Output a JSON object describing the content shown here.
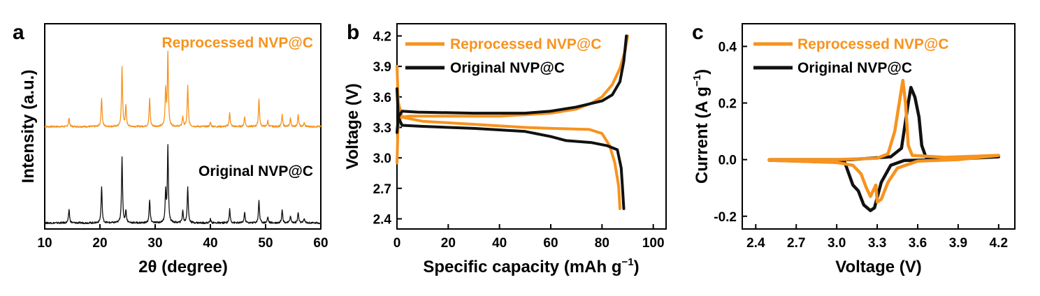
{
  "colors": {
    "reprocessed": "#F7931E",
    "original": "#111111"
  },
  "chart_data": [
    {
      "panel": "a",
      "type": "line",
      "xlabel": "2θ (degree)",
      "ylabel": "Intensity (a.u.)",
      "xlim": [
        10,
        60
      ],
      "xticks": [
        "10",
        "20",
        "30",
        "40",
        "50",
        "60"
      ],
      "y_ticks_shown": false,
      "peaks_deg": [
        14.4,
        20.3,
        24.0,
        24.7,
        29.0,
        31.9,
        32.3,
        35.0,
        35.9,
        40.0,
        43.5,
        46.2,
        48.8,
        50.4,
        53.0,
        54.5,
        55.9,
        57.0
      ],
      "series": [
        {
          "name": "Reprocessed NVP@C",
          "color": "#F7931E",
          "peak_heights": [
            0.12,
            0.4,
            0.82,
            0.28,
            0.38,
            0.5,
            1.0,
            0.14,
            0.56,
            0.06,
            0.2,
            0.14,
            0.38,
            0.08,
            0.16,
            0.12,
            0.16,
            0.05
          ]
        },
        {
          "name": "Original NVP@C",
          "color": "#111111",
          "peak_heights": [
            0.18,
            0.48,
            0.86,
            0.16,
            0.3,
            0.4,
            1.0,
            0.16,
            0.48,
            0.05,
            0.18,
            0.14,
            0.3,
            0.08,
            0.18,
            0.1,
            0.14,
            0.06
          ]
        }
      ]
    },
    {
      "panel": "b",
      "type": "line",
      "xlabel": "Specific capacity (mAh g",
      "xlabel_sup": "−1",
      "xlabel_end": ")",
      "ylabel": "Voltage (V)",
      "xlim": [
        0,
        105
      ],
      "ylim": [
        2.3,
        4.32
      ],
      "xticks": [
        "0",
        "20",
        "40",
        "60",
        "80",
        "100"
      ],
      "yticks": [
        "2.4",
        "2.7",
        "3.0",
        "3.3",
        "3.6",
        "3.9",
        "4.2"
      ],
      "legend": "top-left",
      "series": [
        {
          "name": "Reprocessed NVP@C",
          "color": "#F7931E",
          "charge": [
            [
              0,
              2.95
            ],
            [
              0.4,
              3.3
            ],
            [
              1.5,
              3.4
            ],
            [
              5,
              3.41
            ],
            [
              20,
              3.41
            ],
            [
              40,
              3.41
            ],
            [
              60,
              3.44
            ],
            [
              70,
              3.48
            ],
            [
              76,
              3.54
            ],
            [
              80,
              3.6
            ],
            [
              84,
              3.72
            ],
            [
              87,
              3.88
            ],
            [
              89,
              4.05
            ],
            [
              90,
              4.2
            ]
          ],
          "discharge": [
            [
              0,
              3.9
            ],
            [
              0.5,
              3.55
            ],
            [
              2,
              3.4
            ],
            [
              10,
              3.36
            ],
            [
              30,
              3.33
            ],
            [
              50,
              3.3
            ],
            [
              60,
              3.29
            ],
            [
              75,
              3.28
            ],
            [
              80,
              3.24
            ],
            [
              83,
              3.12
            ],
            [
              85,
              2.95
            ],
            [
              86.5,
              2.72
            ],
            [
              87,
              2.5
            ]
          ]
        },
        {
          "name": "Original NVP@C",
          "color": "#111111",
          "charge": [
            [
              0,
              3.25
            ],
            [
              0.5,
              3.4
            ],
            [
              2,
              3.46
            ],
            [
              8,
              3.45
            ],
            [
              30,
              3.44
            ],
            [
              50,
              3.44
            ],
            [
              60,
              3.46
            ],
            [
              70,
              3.5
            ],
            [
              80,
              3.56
            ],
            [
              84,
              3.62
            ],
            [
              87,
              3.75
            ],
            [
              88.5,
              3.95
            ],
            [
              89.5,
              4.2
            ]
          ],
          "discharge": [
            [
              0,
              3.68
            ],
            [
              0.5,
              3.4
            ],
            [
              2,
              3.32
            ],
            [
              10,
              3.31
            ],
            [
              30,
              3.29
            ],
            [
              50,
              3.26
            ],
            [
              60,
              3.21
            ],
            [
              66,
              3.17
            ],
            [
              76,
              3.15
            ],
            [
              82,
              3.12
            ],
            [
              86,
              3.08
            ],
            [
              87.5,
              2.9
            ],
            [
              88,
              2.7
            ],
            [
              88.5,
              2.5
            ]
          ]
        }
      ]
    },
    {
      "panel": "c",
      "type": "line",
      "xlabel": "Voltage (V)",
      "ylabel": "Current (A g",
      "ylabel_sup": "−1",
      "ylabel_end": ")",
      "xlim": [
        2.3,
        4.32
      ],
      "ylim": [
        -0.245,
        0.48
      ],
      "xticks": [
        "2.4",
        "2.7",
        "3.0",
        "3.3",
        "3.6",
        "3.9",
        "4.2"
      ],
      "yticks": [
        "-0.2",
        "0.0",
        "0.2",
        "0.4"
      ],
      "legend": "top-left",
      "series": [
        {
          "name": "Reprocessed NVP@C",
          "color": "#F7931E",
          "loop": [
            [
              2.5,
              0.0
            ],
            [
              3.0,
              0.0
            ],
            [
              3.3,
              0.005
            ],
            [
              3.38,
              0.02
            ],
            [
              3.43,
              0.1
            ],
            [
              3.47,
              0.22
            ],
            [
              3.49,
              0.28
            ],
            [
              3.51,
              0.2
            ],
            [
              3.53,
              0.05
            ],
            [
              3.56,
              0.015
            ],
            [
              3.8,
              0.008
            ],
            [
              4.2,
              0.015
            ],
            [
              3.9,
              0.0
            ],
            [
              3.6,
              -0.005
            ],
            [
              3.45,
              -0.03
            ],
            [
              3.38,
              -0.08
            ],
            [
              3.33,
              -0.14
            ],
            [
              3.3,
              -0.15
            ],
            [
              3.29,
              -0.09
            ],
            [
              3.25,
              -0.13
            ],
            [
              3.22,
              -0.1
            ],
            [
              3.18,
              -0.05
            ],
            [
              3.12,
              -0.02
            ],
            [
              3.0,
              -0.01
            ],
            [
              2.5,
              -0.002
            ]
          ]
        },
        {
          "name": "Original NVP@C",
          "color": "#111111",
          "loop": [
            [
              2.5,
              0.0
            ],
            [
              3.1,
              0.0
            ],
            [
              3.4,
              0.01
            ],
            [
              3.48,
              0.04
            ],
            [
              3.53,
              0.2
            ],
            [
              3.55,
              0.255
            ],
            [
              3.58,
              0.22
            ],
            [
              3.61,
              0.15
            ],
            [
              3.63,
              0.05
            ],
            [
              3.66,
              0.01
            ],
            [
              3.9,
              0.005
            ],
            [
              4.2,
              0.01
            ],
            [
              3.8,
              0.0
            ],
            [
              3.5,
              -0.003
            ],
            [
              3.4,
              -0.02
            ],
            [
              3.33,
              -0.08
            ],
            [
              3.28,
              -0.17
            ],
            [
              3.25,
              -0.18
            ],
            [
              3.2,
              -0.16
            ],
            [
              3.16,
              -0.11
            ],
            [
              3.12,
              -0.09
            ],
            [
              3.09,
              -0.05
            ],
            [
              3.06,
              -0.01
            ],
            [
              2.5,
              -0.002
            ]
          ]
        }
      ]
    }
  ]
}
